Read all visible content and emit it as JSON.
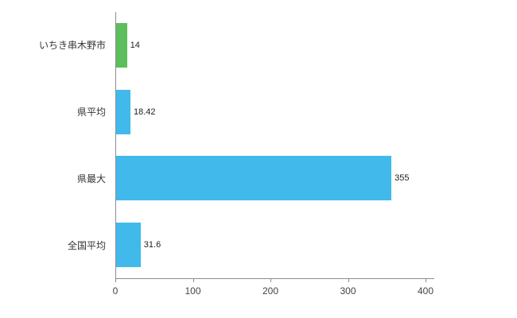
{
  "chart_data": {
    "type": "bar",
    "orientation": "horizontal",
    "title": "",
    "categories": [
      "いちき串木野市",
      "県平均",
      "県最大",
      "全国平均"
    ],
    "values": [
      14,
      18.42,
      355,
      31.6
    ],
    "value_labels": [
      "14",
      "18.42",
      "355",
      "31.6"
    ],
    "bar_colors": [
      "#5cbe5c",
      "#41b9ea",
      "#41b9ea",
      "#41b9ea"
    ],
    "xlim": [
      0,
      400
    ],
    "x_tick_labels": [
      "0",
      "100",
      "200",
      "300",
      "400"
    ],
    "x_tick_values": [
      0,
      100,
      200,
      300,
      400
    ],
    "grid": false,
    "legend": false,
    "axis_color": "#8c8c8c",
    "text_color": "#333333"
  }
}
